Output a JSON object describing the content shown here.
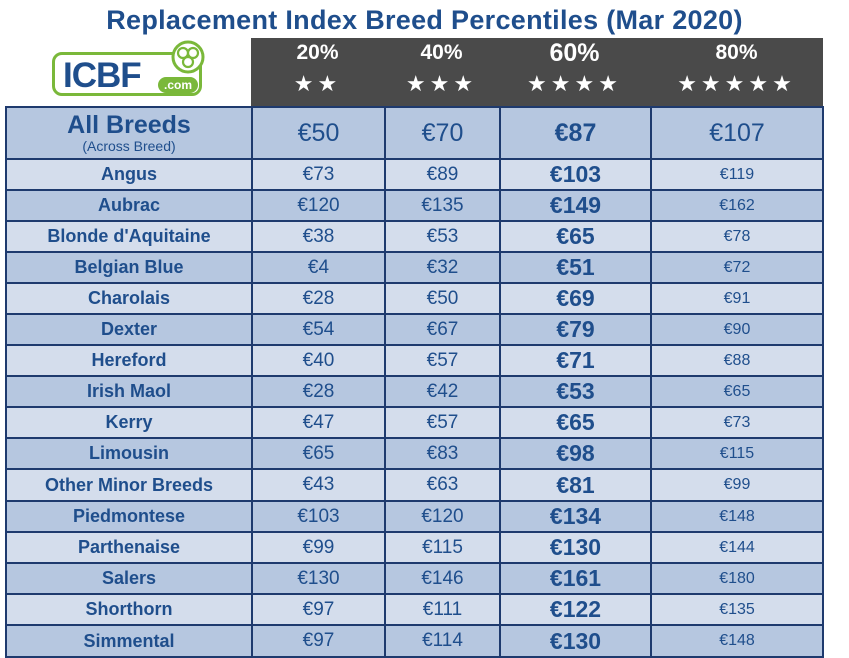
{
  "title": "Replacement Index Breed Percentiles (Mar 2020)",
  "logo": {
    "main": "ICBF",
    "suffix": ".com"
  },
  "columns": [
    {
      "label": "20%",
      "stars": "★★"
    },
    {
      "label": "40%",
      "stars": "★★★"
    },
    {
      "label": "60%",
      "stars": "★★★★"
    },
    {
      "label": "80%",
      "stars": "★★★★★"
    }
  ],
  "all_breeds": {
    "name": "All Breeds",
    "sub": "(Across Breed)",
    "values": [
      "€50",
      "€70",
      "€87",
      "€107"
    ]
  },
  "rows": [
    {
      "breed": "Angus",
      "values": [
        "€73",
        "€89",
        "€103",
        "€119"
      ]
    },
    {
      "breed": "Aubrac",
      "values": [
        "€120",
        "€135",
        "€149",
        "€162"
      ]
    },
    {
      "breed": "Blonde d'Aquitaine",
      "values": [
        "€38",
        "€53",
        "€65",
        "€78"
      ]
    },
    {
      "breed": "Belgian Blue",
      "values": [
        "€4",
        "€32",
        "€51",
        "€72"
      ]
    },
    {
      "breed": "Charolais",
      "values": [
        "€28",
        "€50",
        "€69",
        "€91"
      ]
    },
    {
      "breed": "Dexter",
      "values": [
        "€54",
        "€67",
        "€79",
        "€90"
      ]
    },
    {
      "breed": "Hereford",
      "values": [
        "€40",
        "€57",
        "€71",
        "€88"
      ]
    },
    {
      "breed": "Irish Maol",
      "values": [
        "€28",
        "€42",
        "€53",
        "€65"
      ]
    },
    {
      "breed": "Kerry",
      "values": [
        "€47",
        "€57",
        "€65",
        "€73"
      ]
    },
    {
      "breed": "Limousin",
      "values": [
        "€65",
        "€83",
        "€98",
        "€115"
      ]
    },
    {
      "breed": "Other Minor Breeds",
      "values": [
        "€43",
        "€63",
        "€81",
        "€99"
      ]
    },
    {
      "breed": "Piedmontese",
      "values": [
        "€103",
        "€120",
        "€134",
        "€148"
      ]
    },
    {
      "breed": "Parthenaise",
      "values": [
        "€99",
        "€115",
        "€130",
        "€144"
      ]
    },
    {
      "breed": "Salers",
      "values": [
        "€130",
        "€146",
        "€161",
        "€180"
      ]
    },
    {
      "breed": "Shorthorn",
      "values": [
        "€97",
        "€111",
        "€122",
        "€135"
      ]
    },
    {
      "breed": "Simmental",
      "values": [
        "€97",
        "€114",
        "€130",
        "€148"
      ]
    }
  ]
}
